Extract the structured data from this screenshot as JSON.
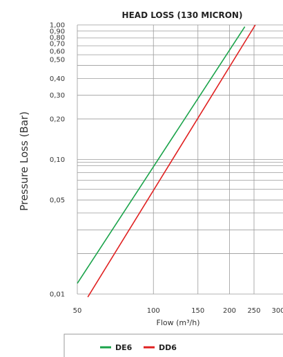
{
  "chart_data": {
    "type": "line",
    "title": "HEAD LOSS (130 MICRON)",
    "xlabel": "Flow (m³/h)",
    "ylabel": "Pressure Loss (Bar)",
    "x_scale": "log",
    "y_scale": "log",
    "xlim": [
      50,
      300
    ],
    "ylim": [
      0.01,
      1.0
    ],
    "x_ticks": [
      {
        "value": 50,
        "label": "50"
      },
      {
        "value": 100,
        "label": "100"
      },
      {
        "value": 150,
        "label": "150"
      },
      {
        "value": 200,
        "label": "200"
      },
      {
        "value": 250,
        "label": "250"
      },
      {
        "value": 300,
        "label": "300"
      }
    ],
    "y_ticks": [
      {
        "value": 1.0,
        "label": "1,00"
      },
      {
        "value": 0.9,
        "label": "0,90"
      },
      {
        "value": 0.8,
        "label": "0,80"
      },
      {
        "value": 0.7,
        "label": "0,70"
      },
      {
        "value": 0.6,
        "label": "0,60"
      },
      {
        "value": 0.5,
        "label": "0,50"
      },
      {
        "value": 0.4,
        "label": "0,40"
      },
      {
        "value": 0.3,
        "label": "0,30"
      },
      {
        "value": 0.2,
        "label": "0,20"
      },
      {
        "value": 0.1,
        "label": "0,10"
      },
      {
        "value": 0.05,
        "label": "0,05"
      },
      {
        "value": 0.01,
        "label": "0,01"
      }
    ],
    "y_grid_values": [
      1.0,
      0.9,
      0.8,
      0.7,
      0.6,
      0.5,
      0.4,
      0.3,
      0.2,
      0.1,
      0.09,
      0.08,
      0.07,
      0.06,
      0.05,
      0.04,
      0.03,
      0.02,
      0.01
    ],
    "x_grid_values": [
      50,
      100,
      150,
      200,
      250
    ],
    "grid": true,
    "legend_position": "bottom",
    "series": [
      {
        "name": "DE6",
        "color": "#1aa34a",
        "x": [
          50,
          230
        ],
        "y": [
          0.012,
          0.97
        ]
      },
      {
        "name": "DD6",
        "color": "#e02020",
        "x": [
          55,
          253
        ],
        "y": [
          0.0095,
          1.0
        ]
      }
    ]
  }
}
